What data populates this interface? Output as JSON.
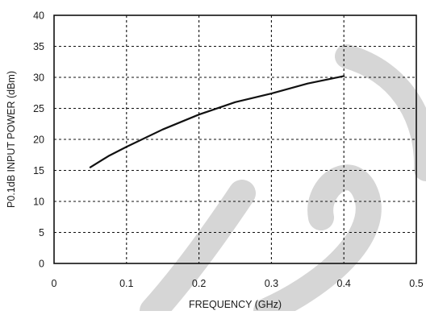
{
  "chart_data": {
    "type": "line",
    "title": "",
    "xlabel": "FREQUENCY (GHz)",
    "ylabel": "P0.1dB INPUT POWER (dBm)",
    "xlim": [
      0,
      0.5
    ],
    "ylim": [
      0,
      40
    ],
    "x_ticks": [
      "0",
      "0.1",
      "0.2",
      "0.3",
      "0.4",
      "0.5"
    ],
    "y_ticks": [
      "0",
      "5",
      "10",
      "15",
      "20",
      "25",
      "30",
      "35",
      "40"
    ],
    "grid": true,
    "grid_style": "dotted",
    "series": [
      {
        "x": [
          0.05,
          0.075,
          0.1,
          0.15,
          0.2,
          0.25,
          0.3,
          0.35,
          0.4
        ],
        "y": [
          15.5,
          17.3,
          18.8,
          21.6,
          24.0,
          26.0,
          27.4,
          29.0,
          30.2
        ]
      }
    ],
    "line_color": "#111111",
    "watermark_color": "#d6d6d6"
  }
}
